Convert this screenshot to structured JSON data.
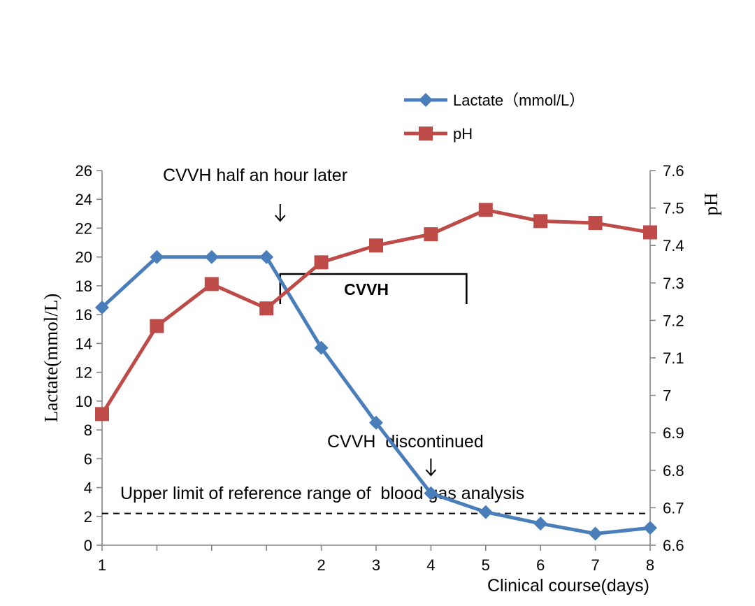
{
  "chart_data": {
    "type": "line",
    "x_tick_labels": [
      "1",
      "",
      "",
      "",
      "2",
      "3",
      "4",
      "5",
      "6",
      "7",
      "8"
    ],
    "series": [
      {
        "name": "Lactate（mmol/L）",
        "axis": "left",
        "color": "#4a7ebb",
        "marker": "diamond",
        "values": [
          16.5,
          20,
          20,
          20,
          13.7,
          8.5,
          3.6,
          2.3,
          1.5,
          0.8,
          1.2
        ]
      },
      {
        "name": "pH",
        "axis": "right",
        "color": "#be4b48",
        "marker": "square",
        "values": [
          6.95,
          7.185,
          7.297,
          7.232,
          7.355,
          7.4,
          7.43,
          7.495,
          7.465,
          7.46,
          7.435
        ]
      }
    ],
    "ylabel_left": "Lactate(mmol/L)",
    "ylabel_right": "pH",
    "xlabel": "Clinical course(days)",
    "ylim_left": [
      0,
      26
    ],
    "ylim_right": [
      6.6,
      7.6
    ],
    "yticks_left": [
      "0",
      "2",
      "4",
      "6",
      "8",
      "10",
      "12",
      "14",
      "16",
      "18",
      "20",
      "22",
      "24",
      "26"
    ],
    "yticks_right": [
      "6.6",
      "6.7",
      "6.8",
      "6.9",
      "7",
      "7.1",
      "7.2",
      "7.3",
      "7.4",
      "7.5",
      "7.6"
    ],
    "reference_line": {
      "value": 2.2,
      "label": "Upper limit of reference range of  blood gas analysis"
    },
    "cvvh_bracket": {
      "label": "CVVH",
      "start": 3.25,
      "end": 6.65
    },
    "annotations": [
      {
        "text": "CVVH half an hour later",
        "arrow_at": 3.25
      },
      {
        "text": "CVVH  discontinued",
        "arrow_at": 6.0
      }
    ],
    "legend_position": "top-right",
    "grid": false
  }
}
